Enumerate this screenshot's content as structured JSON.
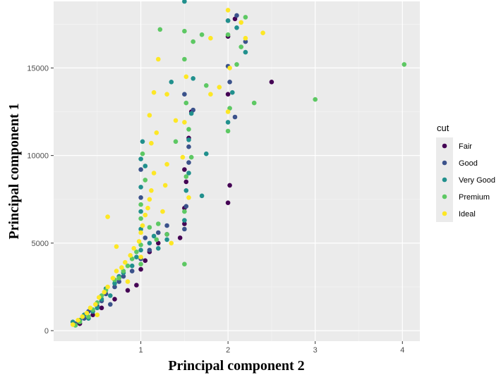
{
  "chart_data": {
    "type": "scatter",
    "xlabel": "Principal component 2",
    "ylabel": "Principal component 1",
    "xlim": [
      0.0,
      4.2
    ],
    "ylim": [
      -600,
      18800
    ],
    "x_ticks": [
      1,
      2,
      3,
      4
    ],
    "y_ticks": [
      0,
      5000,
      10000,
      15000
    ],
    "grid": true,
    "legend": {
      "title": "cut",
      "position": "right",
      "entries": [
        "Fair",
        "Good",
        "Very Good",
        "Premium",
        "Ideal"
      ]
    },
    "series": [
      {
        "name": "Fair",
        "color": "#440154",
        "points": [
          [
            0.3,
            400
          ],
          [
            0.45,
            900
          ],
          [
            0.55,
            1300
          ],
          [
            0.7,
            1800
          ],
          [
            0.85,
            2300
          ],
          [
            0.95,
            2600
          ],
          [
            1.0,
            3500
          ],
          [
            1.05,
            4000
          ],
          [
            1.1,
            4500
          ],
          [
            1.2,
            5000
          ],
          [
            1.3,
            5500
          ],
          [
            1.45,
            5300
          ],
          [
            1.5,
            6100
          ],
          [
            1.5,
            7000
          ],
          [
            1.52,
            8500
          ],
          [
            1.5,
            9200
          ],
          [
            1.55,
            11000
          ],
          [
            1.58,
            12500
          ],
          [
            2.0,
            7300
          ],
          [
            2.02,
            8300
          ],
          [
            2.0,
            13500
          ],
          [
            2.0,
            16800
          ],
          [
            2.5,
            14200
          ],
          [
            2.08,
            17800
          ]
        ]
      },
      {
        "name": "Good",
        "color": "#3b528b",
        "points": [
          [
            0.25,
            400
          ],
          [
            0.35,
            700
          ],
          [
            0.4,
            1100
          ],
          [
            0.5,
            1400
          ],
          [
            0.55,
            1700
          ],
          [
            0.6,
            2100
          ],
          [
            0.7,
            2500
          ],
          [
            0.8,
            3100
          ],
          [
            0.9,
            3400
          ],
          [
            1.0,
            4100
          ],
          [
            1.05,
            5300
          ],
          [
            1.0,
            7600
          ],
          [
            1.0,
            9200
          ],
          [
            1.1,
            4600
          ],
          [
            1.2,
            5600
          ],
          [
            1.5,
            5800
          ],
          [
            1.52,
            7100
          ],
          [
            1.55,
            9600
          ],
          [
            1.55,
            10500
          ],
          [
            1.6,
            12600
          ],
          [
            1.5,
            13500
          ],
          [
            2.0,
            15100
          ],
          [
            2.02,
            14200
          ],
          [
            2.08,
            12200
          ],
          [
            2.0,
            17700
          ],
          [
            2.2,
            16500
          ],
          [
            2.1,
            18000
          ],
          [
            1.3,
            6000
          ],
          [
            0.65,
            1500
          ],
          [
            0.75,
            2800
          ]
        ]
      },
      {
        "name": "Very Good",
        "color": "#21908d",
        "points": [
          [
            0.22,
            500
          ],
          [
            0.3,
            600
          ],
          [
            0.35,
            900
          ],
          [
            0.45,
            1100
          ],
          [
            0.5,
            1300
          ],
          [
            0.55,
            1800
          ],
          [
            0.6,
            2400
          ],
          [
            0.7,
            2700
          ],
          [
            0.75,
            3100
          ],
          [
            0.8,
            3300
          ],
          [
            0.9,
            3700
          ],
          [
            0.95,
            4200
          ],
          [
            1.0,
            4600
          ],
          [
            1.0,
            5800
          ],
          [
            1.0,
            6800
          ],
          [
            1.0,
            8200
          ],
          [
            1.0,
            9800
          ],
          [
            1.02,
            10800
          ],
          [
            1.1,
            5000
          ],
          [
            1.15,
            5400
          ],
          [
            1.2,
            4700
          ],
          [
            1.3,
            5200
          ],
          [
            1.5,
            6300
          ],
          [
            1.52,
            8000
          ],
          [
            1.55,
            9000
          ],
          [
            1.55,
            10900
          ],
          [
            1.58,
            12400
          ],
          [
            1.5,
            18800
          ],
          [
            1.7,
            7700
          ],
          [
            1.75,
            10100
          ],
          [
            2.0,
            11900
          ],
          [
            2.05,
            13600
          ],
          [
            2.1,
            17300
          ],
          [
            2.0,
            17700
          ],
          [
            2.2,
            15900
          ],
          [
            1.05,
            9400
          ],
          [
            0.4,
            700
          ],
          [
            0.65,
            2000
          ],
          [
            1.35,
            14200
          ],
          [
            1.6,
            14400
          ]
        ]
      },
      {
        "name": "Premium",
        "color": "#5dc863",
        "points": [
          [
            0.25,
            300
          ],
          [
            0.3,
            500
          ],
          [
            0.4,
            800
          ],
          [
            0.45,
            1200
          ],
          [
            0.5,
            1600
          ],
          [
            0.55,
            2000
          ],
          [
            0.6,
            2300
          ],
          [
            0.7,
            2900
          ],
          [
            0.8,
            3400
          ],
          [
            0.85,
            3700
          ],
          [
            0.9,
            4100
          ],
          [
            0.95,
            4500
          ],
          [
            1.0,
            4900
          ],
          [
            1.0,
            6400
          ],
          [
            1.0,
            7200
          ],
          [
            1.05,
            8600
          ],
          [
            1.02,
            10100
          ],
          [
            1.1,
            5900
          ],
          [
            1.2,
            6100
          ],
          [
            1.3,
            5500
          ],
          [
            1.5,
            3800
          ],
          [
            1.5,
            6800
          ],
          [
            1.52,
            8800
          ],
          [
            1.55,
            11500
          ],
          [
            1.52,
            13000
          ],
          [
            1.5,
            15500
          ],
          [
            1.5,
            17100
          ],
          [
            1.6,
            16500
          ],
          [
            1.7,
            16900
          ],
          [
            1.75,
            14000
          ],
          [
            2.0,
            11400
          ],
          [
            2.02,
            12700
          ],
          [
            2.1,
            15200
          ],
          [
            2.15,
            16200
          ],
          [
            2.2,
            17900
          ],
          [
            2.3,
            13000
          ],
          [
            1.22,
            17200
          ],
          [
            3.0,
            13200
          ],
          [
            4.02,
            15200
          ],
          [
            1.18,
            5200
          ],
          [
            0.75,
            3000
          ],
          [
            1.0,
            3800
          ],
          [
            1.4,
            10800
          ],
          [
            1.58,
            9900
          ],
          [
            2.0,
            16900
          ]
        ]
      },
      {
        "name": "Ideal",
        "color": "#fde725",
        "points": [
          [
            0.22,
            350
          ],
          [
            0.28,
            600
          ],
          [
            0.33,
            800
          ],
          [
            0.38,
            1000
          ],
          [
            0.42,
            1300
          ],
          [
            0.48,
            1500
          ],
          [
            0.52,
            1900
          ],
          [
            0.58,
            2200
          ],
          [
            0.62,
            2500
          ],
          [
            0.68,
            3000
          ],
          [
            0.72,
            3400
          ],
          [
            0.78,
            3600
          ],
          [
            0.82,
            3900
          ],
          [
            0.88,
            4300
          ],
          [
            0.92,
            4700
          ],
          [
            0.98,
            5100
          ],
          [
            1.0,
            5600
          ],
          [
            1.02,
            6000
          ],
          [
            1.05,
            6600
          ],
          [
            1.08,
            7000
          ],
          [
            1.1,
            7500
          ],
          [
            1.12,
            8000
          ],
          [
            1.15,
            9000
          ],
          [
            1.12,
            10700
          ],
          [
            1.18,
            11300
          ],
          [
            1.1,
            12300
          ],
          [
            1.2,
            15500
          ],
          [
            1.15,
            13600
          ],
          [
            1.25,
            6800
          ],
          [
            1.28,
            8300
          ],
          [
            1.3,
            9500
          ],
          [
            1.3,
            13500
          ],
          [
            1.48,
            9900
          ],
          [
            1.5,
            11900
          ],
          [
            1.52,
            14500
          ],
          [
            1.8,
            13500
          ],
          [
            1.8,
            16700
          ],
          [
            1.9,
            13900
          ],
          [
            2.0,
            12500
          ],
          [
            2.02,
            15000
          ],
          [
            2.0,
            18300
          ],
          [
            2.15,
            17600
          ],
          [
            2.4,
            17000
          ],
          [
            0.62,
            6500
          ],
          [
            0.72,
            4800
          ],
          [
            1.4,
            12000
          ],
          [
            1.55,
            7600
          ],
          [
            2.2,
            16700
          ],
          [
            1.35,
            5000
          ],
          [
            1.0,
            4200
          ],
          [
            0.5,
            900
          ],
          [
            0.85,
            2800
          ]
        ]
      }
    ]
  }
}
